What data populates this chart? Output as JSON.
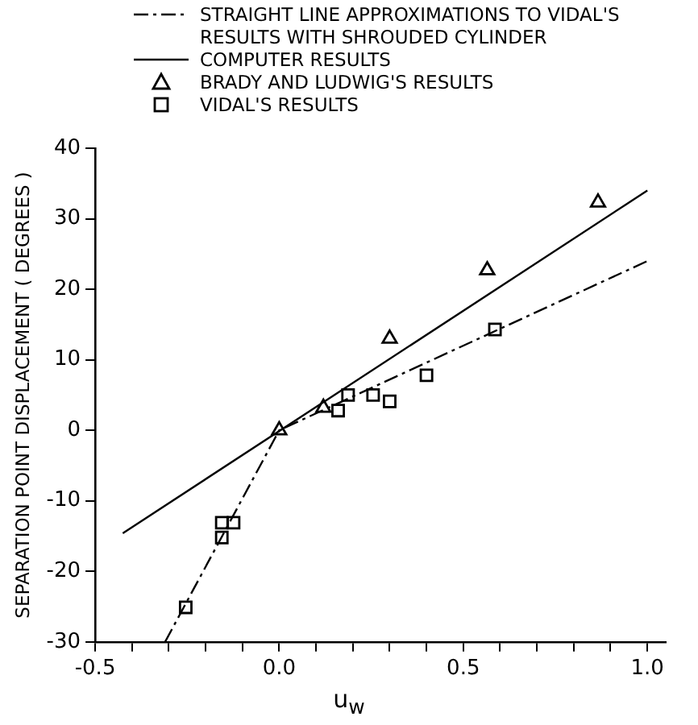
{
  "chart_data": {
    "type": "scatter",
    "xlabel": "u$_{w}$",
    "ylabel": "SEPARATION POINT DISPLACEMENT ( DEGREES )",
    "xlim": [
      -0.5,
      1.05
    ],
    "ylim": [
      -30,
      40
    ],
    "xticks": [
      {
        "value": -0.5,
        "label": "-0.5"
      },
      {
        "value": -0.4,
        "label": null
      },
      {
        "value": -0.3,
        "label": null
      },
      {
        "value": -0.2,
        "label": null
      },
      {
        "value": -0.1,
        "label": null
      },
      {
        "value": 0,
        "label": "0.0"
      },
      {
        "value": 0.1,
        "label": null
      },
      {
        "value": 0.2,
        "label": null
      },
      {
        "value": 0.3,
        "label": null
      },
      {
        "value": 0.4,
        "label": null
      },
      {
        "value": 0.5,
        "label": "0.5"
      },
      {
        "value": 0.6,
        "label": null
      },
      {
        "value": 0.7,
        "label": null
      },
      {
        "value": 0.8,
        "label": null
      },
      {
        "value": 0.9,
        "label": null
      },
      {
        "value": 1.0,
        "label": "1.0"
      }
    ],
    "yticks": [
      -30,
      -20,
      -10,
      0,
      10,
      20,
      30,
      40
    ],
    "grid": false,
    "legend": "top",
    "series": [
      {
        "name": "STRAIGHT LINE APPROXIMATIONS TO VIDAL'S RESULTS WITH SHROUDED CYLINDER",
        "type": "line",
        "line_style": "dashed",
        "marker": "none",
        "color": "#000000",
        "x": [
          -0.31,
          0,
          1.0
        ],
        "values": [
          -30,
          0,
          24
        ]
      },
      {
        "name": "COMPUTER RESULTS",
        "type": "line",
        "line_style": "solid",
        "marker": "none",
        "color": "#000000",
        "x": [
          -0.425,
          1.0
        ],
        "values": [
          -14.6,
          34
        ]
      },
      {
        "name": "BRADY AND LUDWIG'S RESULTS",
        "type": "scatter",
        "marker": "triangle",
        "color": "#000000",
        "x": [
          0,
          0.12,
          0.3,
          0.565,
          0.866
        ],
        "values": [
          0,
          3.2,
          13,
          22.7,
          32.3
        ]
      },
      {
        "name": "VIDAL'S RESULTS",
        "type": "scatter",
        "marker": "square",
        "color": "#000000",
        "x": [
          -0.254,
          -0.156,
          -0.156,
          -0.124,
          0.16,
          0.187,
          0.255,
          0.3,
          0.4,
          0.586
        ],
        "values": [
          -25.1,
          -15.2,
          -13.1,
          -13.1,
          2.8,
          5,
          5,
          4.1,
          7.8,
          14.3
        ]
      }
    ]
  }
}
